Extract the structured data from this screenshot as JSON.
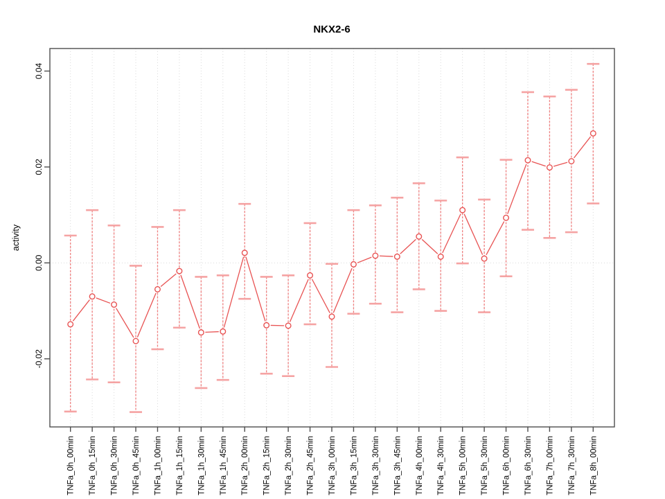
{
  "chart_data": {
    "type": "line",
    "title": "NKX2-6",
    "xlabel": "",
    "ylabel": "activity",
    "legend": "none",
    "grid": "vertical dotted gridline at every category; horizontal dotted line at y=0",
    "categories": [
      "TNFa_0h_00min",
      "TNFa_0h_15min",
      "TNFa_0h_30min",
      "TNFa_0h_45min",
      "TNFa_1h_00min",
      "TNFa_1h_15min",
      "TNFa_1h_30min",
      "TNFa_1h_45min",
      "TNFa_2h_00min",
      "TNFa_2h_15min",
      "TNFa_2h_30min",
      "TNFa_2h_45min",
      "TNFa_3h_00min",
      "TNFa_3h_15min",
      "TNFa_3h_30min",
      "TNFa_3h_45min",
      "TNFa_4h_00min",
      "TNFa_4h_30min",
      "TNFa_5h_00min",
      "TNFa_5h_30min",
      "TNFa_6h_00min",
      "TNFa_6h_30min",
      "TNFa_7h_00min",
      "TNFa_7h_30min",
      "TNFa_8h_00min"
    ],
    "series": [
      {
        "name": "activity",
        "marker": "open-circle",
        "values": [
          -0.0128,
          -0.007,
          -0.0087,
          -0.0163,
          -0.0055,
          -0.0017,
          -0.0145,
          -0.0143,
          0.0021,
          -0.013,
          -0.0131,
          -0.0026,
          -0.0112,
          -0.0003,
          0.0015,
          0.0013,
          0.0055,
          0.0013,
          0.011,
          0.0009,
          0.0094,
          0.0214,
          0.0199,
          0.0212,
          0.027
        ],
        "err_low": [
          -0.031,
          -0.0243,
          -0.0249,
          -0.0311,
          -0.018,
          -0.0135,
          -0.0261,
          -0.0244,
          -0.0075,
          -0.0231,
          -0.0236,
          -0.0128,
          -0.0217,
          -0.0106,
          -0.0085,
          -0.0103,
          -0.0055,
          -0.01,
          -0.0001,
          -0.0103,
          -0.0028,
          0.0069,
          0.0052,
          0.0064,
          0.0124
        ],
        "err_high": [
          0.0057,
          0.011,
          0.0078,
          -0.0006,
          0.0075,
          0.011,
          -0.0029,
          -0.0026,
          0.0123,
          -0.0029,
          -0.0026,
          0.0083,
          -0.0002,
          0.011,
          0.012,
          0.0136,
          0.0166,
          0.013,
          0.022,
          0.0132,
          0.0215,
          0.0356,
          0.0347,
          0.0361,
          0.0415
        ]
      }
    ],
    "yticks": {
      "values": [
        -0.02,
        0.0,
        0.02,
        0.04
      ],
      "labels": [
        "-0.02",
        "0.00",
        "0.02",
        "0.04"
      ]
    },
    "ylim": [
      -0.0342,
      0.0447
    ],
    "colors": {
      "point": "#e85252",
      "line": "#e85252",
      "errorbar": "#ef7f7f",
      "errorcap": "#f5a3a3",
      "grid": "#d9d9d9",
      "zero_line": "#d9d9d9",
      "frame": "#4d4d4d",
      "tick": "#4d4d4d",
      "text": "#000000"
    }
  }
}
